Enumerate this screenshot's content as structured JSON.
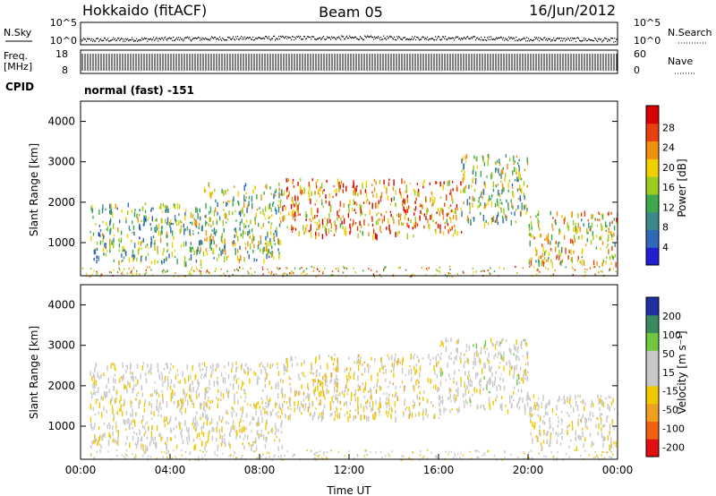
{
  "header": {
    "station": "Hokkaido (fitACF)",
    "beam": "Beam 05",
    "date": "16/Jun/2012"
  },
  "noise_panel": {
    "left_label": "N.Sky",
    "right_label": "N.Search",
    "left_ticks": [
      "10^5",
      "10^0"
    ],
    "right_ticks": [
      "10^5",
      "10^0"
    ],
    "left_range": [
      0,
      5
    ],
    "right_range": [
      0,
      5
    ]
  },
  "freq_panel": {
    "left_label_line1": "Freq.",
    "left_label_line2": "[MHz]",
    "right_label": "Nave",
    "left_ticks": [
      "18",
      "8"
    ],
    "right_ticks": [
      "60",
      "0"
    ],
    "freq_range_mhz": [
      8,
      18
    ],
    "nave_range": [
      0,
      60
    ]
  },
  "cpid": {
    "label": "CPID",
    "text": "normal (fast) -151"
  },
  "chart_data": [
    {
      "type": "heatmap",
      "parameter": "Power",
      "xlabel": "",
      "ylabel": "Slant Range [km]",
      "colorbar_label": "Power [dB]",
      "xlim_hours": [
        0,
        24
      ],
      "ylim_km": [
        180,
        4500
      ],
      "y_ticks": [
        "1000",
        "2000",
        "3000",
        "4000"
      ],
      "colorbar_ticks": [
        "28",
        "24",
        "20",
        "16",
        "12",
        "8",
        "4"
      ],
      "colorbar_range": [
        0,
        30
      ],
      "colorscale": [
        "#2020d0",
        "#3068b8",
        "#3a8a8a",
        "#3caa4a",
        "#9ccc20",
        "#f0d000",
        "#f09010",
        "#e84010",
        "#d80000"
      ],
      "echo_regions": [
        {
          "start_h": 0.4,
          "end_h": 5.5,
          "range_km": [
            500,
            2000
          ],
          "power_db": 12
        },
        {
          "start_h": 5.5,
          "end_h": 9.0,
          "range_km": [
            600,
            2500
          ],
          "power_db": 14
        },
        {
          "start_h": 9.0,
          "end_h": 17.0,
          "range_km": [
            1200,
            2600
          ],
          "power_db": 22
        },
        {
          "start_h": 17.0,
          "end_h": 20.0,
          "range_km": [
            1500,
            3200
          ],
          "power_db": 14
        },
        {
          "start_h": 20.0,
          "end_h": 24.0,
          "range_km": [
            500,
            1800
          ],
          "power_db": 18
        }
      ]
    },
    {
      "type": "heatmap",
      "parameter": "Velocity",
      "xlabel": "Time UT",
      "ylabel": "Slant Range [km]",
      "colorbar_label": "Velocity [m s⁻¹]",
      "xlim_hours": [
        0,
        24
      ],
      "ylim_km": [
        180,
        4500
      ],
      "x_ticks": [
        "00:00",
        "04:00",
        "08:00",
        "12:00",
        "16:00",
        "20:00",
        "00:00"
      ],
      "y_ticks": [
        "1000",
        "2000",
        "3000",
        "4000"
      ],
      "colorbar_ticks": [
        "200",
        "100",
        "50",
        "15",
        "-15",
        "-50",
        "-100",
        "-200"
      ],
      "colorbar_range": [
        -250,
        250
      ],
      "colorscale": [
        "#e01010",
        "#f06010",
        "#f0a020",
        "#f0c800",
        "#c8c8c8",
        "#c8c8c8",
        "#70c840",
        "#3a8a60",
        "#2030a0"
      ],
      "echo_regions": [
        {
          "start_h": 0.4,
          "end_h": 9.0,
          "range_km": [
            500,
            2600
          ],
          "velocity_ms": 0
        },
        {
          "start_h": 9.0,
          "end_h": 16.0,
          "range_km": [
            1200,
            2800
          ],
          "velocity_ms": -30
        },
        {
          "start_h": 16.0,
          "end_h": 20.0,
          "range_km": [
            1400,
            3200
          ],
          "velocity_ms": 20
        },
        {
          "start_h": 20.0,
          "end_h": 24.0,
          "range_km": [
            500,
            1800
          ],
          "velocity_ms": 0
        }
      ]
    }
  ]
}
